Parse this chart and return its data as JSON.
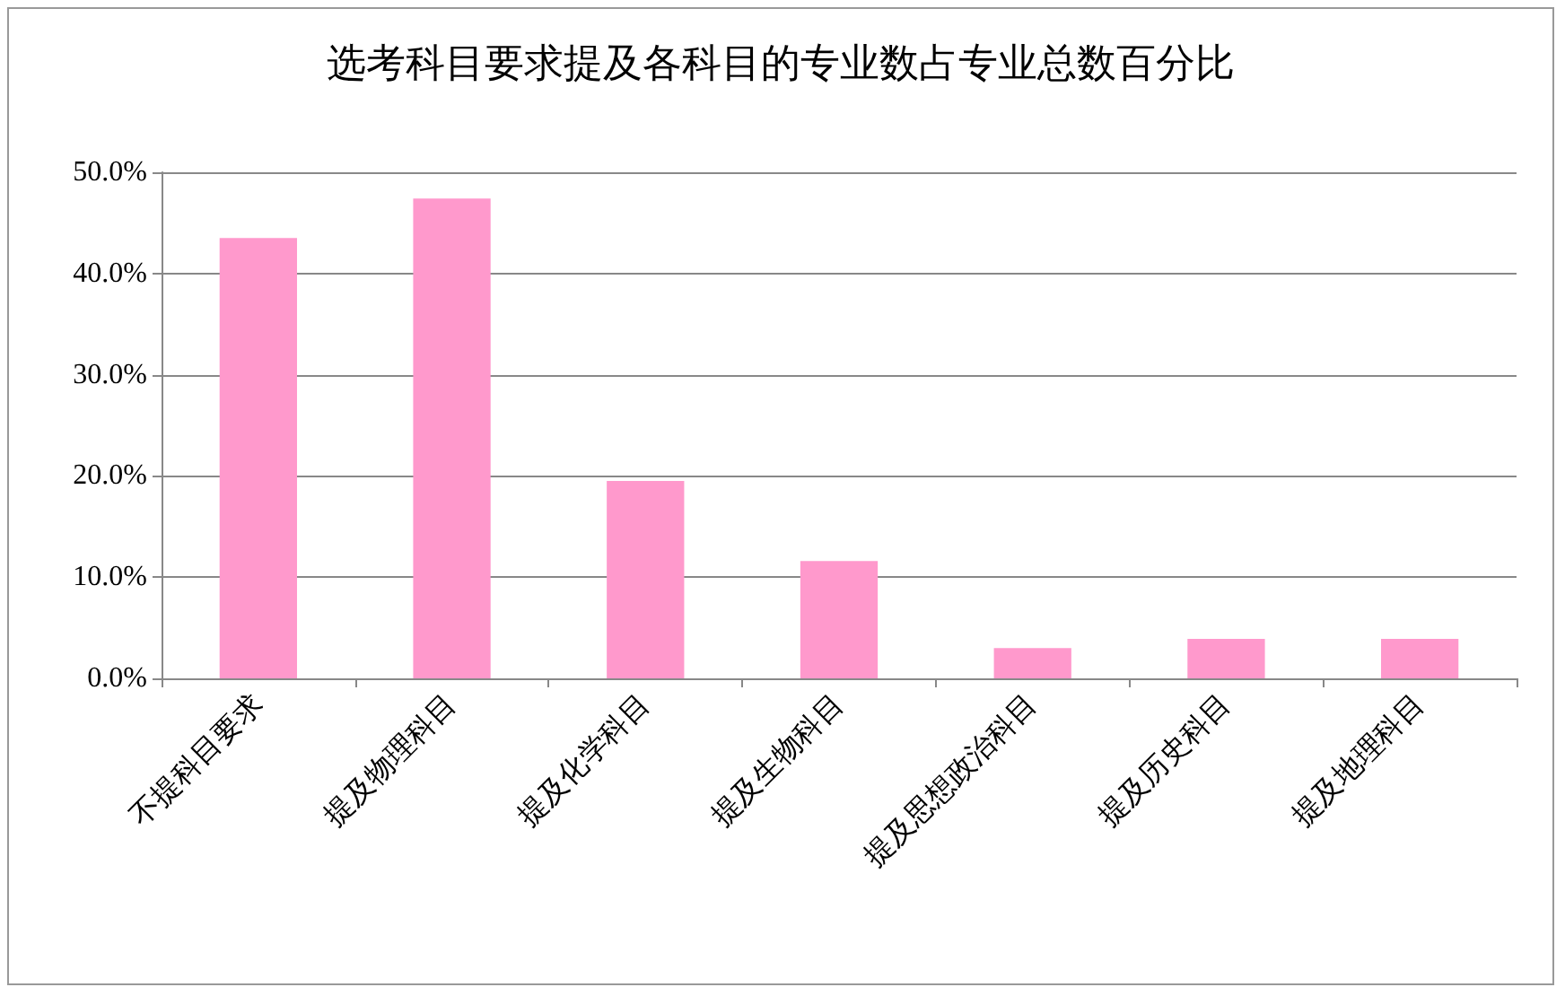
{
  "chart_data": {
    "type": "bar",
    "title": "选考科目要求提及各科目的专业数占专业总数百分比",
    "categories": [
      "不提科目要求",
      "提及物理科目",
      "提及化学科目",
      "提及生物科目",
      "提及思想政治科目",
      "提及历史科目",
      "提及地理科目"
    ],
    "values": [
      43.5,
      47.4,
      19.5,
      11.6,
      3.0,
      3.9,
      3.9
    ],
    "color": "#ff99cc",
    "ylim": [
      0,
      50
    ],
    "yticks": [
      {
        "value": 0,
        "label": "0.0%"
      },
      {
        "value": 10,
        "label": "10.0%"
      },
      {
        "value": 20,
        "label": "20.0%"
      },
      {
        "value": 30,
        "label": "30.0%"
      },
      {
        "value": 40,
        "label": "40.0%"
      },
      {
        "value": 50,
        "label": "50.0%"
      }
    ],
    "grid": "y"
  }
}
